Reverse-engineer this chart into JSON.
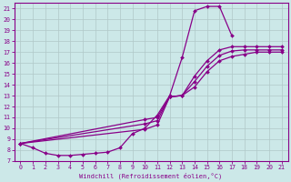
{
  "bg_color": "#cce8e8",
  "grid_color": "#b0c8c8",
  "line_color": "#880088",
  "xlabel": "Windchill (Refroidissement éolien,°C)",
  "xlim": [
    -0.5,
    21.5
  ],
  "ylim": [
    7,
    21.5
  ],
  "xticks": [
    0,
    1,
    2,
    3,
    4,
    5,
    6,
    7,
    8,
    9,
    10,
    11,
    12,
    13,
    14,
    15,
    16,
    17,
    18,
    19,
    20,
    21
  ],
  "yticks": [
    7,
    8,
    9,
    10,
    11,
    12,
    13,
    14,
    15,
    16,
    17,
    18,
    19,
    20,
    21
  ],
  "lines": [
    {
      "x": [
        0,
        1,
        2,
        3,
        4,
        5,
        6,
        7,
        8,
        9,
        10,
        11,
        12,
        13,
        14,
        15,
        16,
        17
      ],
      "y": [
        8.6,
        8.2,
        7.7,
        7.5,
        7.5,
        7.6,
        7.7,
        7.8,
        8.2,
        9.5,
        10.0,
        11.2,
        13.0,
        16.5,
        20.8,
        21.2,
        21.2,
        18.5
      ]
    },
    {
      "x": [
        0,
        10,
        11,
        12,
        13,
        14,
        15,
        16,
        17,
        18,
        19,
        20,
        21
      ],
      "y": [
        8.6,
        10.8,
        11.0,
        12.9,
        13.0,
        14.8,
        16.2,
        17.2,
        17.5,
        17.5,
        17.5,
        17.5,
        17.5
      ]
    },
    {
      "x": [
        0,
        10,
        11,
        12,
        13,
        14,
        15,
        16,
        17,
        18,
        19,
        20,
        21
      ],
      "y": [
        8.6,
        10.4,
        10.7,
        12.9,
        13.0,
        14.3,
        15.7,
        16.7,
        17.1,
        17.2,
        17.2,
        17.2,
        17.2
      ]
    },
    {
      "x": [
        0,
        10,
        11,
        12,
        13,
        14,
        15,
        16,
        17,
        18,
        19,
        20,
        21
      ],
      "y": [
        8.6,
        9.9,
        10.3,
        12.9,
        13.0,
        13.8,
        15.2,
        16.2,
        16.6,
        16.8,
        17.0,
        17.0,
        17.0
      ]
    }
  ]
}
